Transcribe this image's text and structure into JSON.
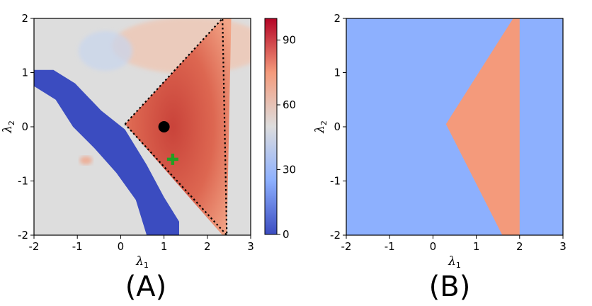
{
  "chart_data": [
    {
      "type": "heatmap",
      "panel_label": "(A)",
      "xlabel": "λ",
      "xlabel_sub": "1",
      "ylabel": "λ",
      "ylabel_sub": "2",
      "xlim": [
        -2,
        3
      ],
      "ylim": [
        -2,
        2
      ],
      "x_ticks": [
        -2,
        -1,
        0,
        1,
        2,
        3
      ],
      "y_ticks": [
        -2,
        -1,
        0,
        1,
        2
      ],
      "x_tick_labels": [
        "-2",
        "-1",
        "0",
        "1",
        "2",
        "3"
      ],
      "y_tick_labels": [
        "-2",
        "-1",
        "0",
        "1",
        "2"
      ],
      "colorbar": {
        "range": [
          0,
          100
        ],
        "ticks": [
          0,
          30,
          60,
          90
        ],
        "tick_labels": [
          "0",
          "30",
          "60",
          "90"
        ],
        "colormap": "coolwarm"
      },
      "background_value": 50,
      "regions": [
        {
          "name": "high-wedge",
          "value_range": [
            72,
            84
          ],
          "polygon": [
            [
              0.1,
              0.05
            ],
            [
              2.35,
              2.0
            ],
            [
              2.55,
              2.0
            ],
            [
              2.45,
              -2.0
            ],
            [
              2.35,
              -2.0
            ]
          ]
        },
        {
          "name": "low-band",
          "value": 5,
          "polygon": [
            [
              -2.0,
              1.05
            ],
            [
              -1.55,
              1.05
            ],
            [
              -1.05,
              0.8
            ],
            [
              -0.45,
              0.3
            ],
            [
              0.1,
              -0.05
            ],
            [
              0.6,
              -0.7
            ],
            [
              1.0,
              -1.3
            ],
            [
              1.35,
              -1.75
            ],
            [
              1.35,
              -2.0
            ],
            [
              0.6,
              -2.0
            ],
            [
              0.35,
              -1.35
            ],
            [
              -0.1,
              -0.85
            ],
            [
              -0.6,
              -0.4
            ],
            [
              -1.1,
              0.0
            ],
            [
              -1.5,
              0.5
            ],
            [
              -2.0,
              0.75
            ]
          ]
        }
      ],
      "boundary_dotted": [
        [
          0.1,
          0.05
        ],
        [
          2.35,
          2.0
        ],
        [
          2.45,
          -2.0
        ],
        [
          0.1,
          0.05
        ]
      ],
      "markers": [
        {
          "name": "black-dot",
          "x": 1.0,
          "y": 0.0,
          "color": "#000000",
          "shape": "circle"
        },
        {
          "name": "green-cross",
          "x": 1.2,
          "y": -0.6,
          "color": "#22a022",
          "shape": "plus"
        }
      ]
    },
    {
      "type": "area",
      "panel_label": "(B)",
      "xlabel": "λ",
      "xlabel_sub": "1",
      "ylabel": "λ",
      "ylabel_sub": "2",
      "xlim": [
        -2,
        3
      ],
      "ylim": [
        -2,
        2
      ],
      "x_ticks": [
        -2,
        -1,
        0,
        1,
        2,
        3
      ],
      "y_ticks": [
        -2,
        -1,
        0,
        1,
        2
      ],
      "x_tick_labels": [
        "-2",
        "-1",
        "0",
        "1",
        "2",
        "3"
      ],
      "y_tick_labels": [
        "-2",
        "-1",
        "0",
        "1",
        "2"
      ],
      "background_color": "#8db0fe",
      "region_color": "#f49a7b",
      "region_polygon": [
        [
          0.3,
          0.05
        ],
        [
          1.85,
          2.0
        ],
        [
          2.0,
          2.0
        ],
        [
          2.0,
          -2.0
        ],
        [
          1.6,
          -2.0
        ]
      ]
    }
  ]
}
